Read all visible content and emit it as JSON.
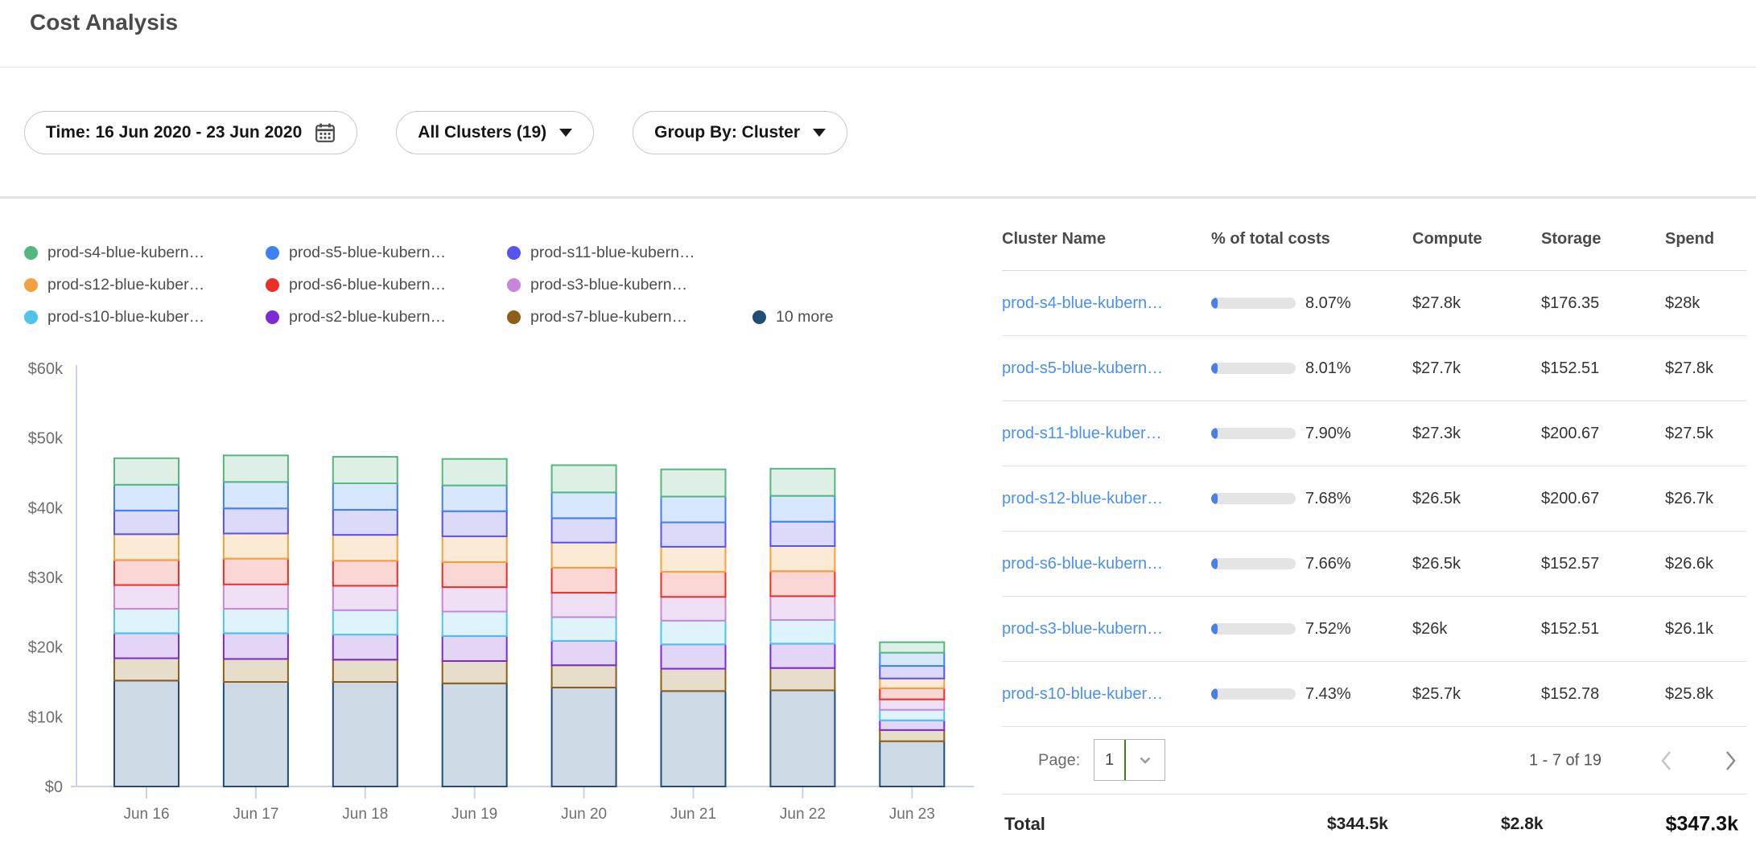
{
  "page": {
    "title": "Cost Analysis"
  },
  "filters": {
    "time_label": "Time: 16 Jun 2020 - 23 Jun 2020",
    "clusters_label": "All Clusters (19)",
    "group_by_label": "Group By: Cluster"
  },
  "chart_data": {
    "type": "bar",
    "stacked": true,
    "title": "",
    "xlabel": "",
    "ylabel": "",
    "units": "USD thousands per day",
    "ylim": [
      0,
      60000
    ],
    "grid": false,
    "legend_position": "top-left",
    "y_ticks": [
      "$0",
      "$10k",
      "$20k",
      "$30k",
      "$40k",
      "$50k",
      "$60k"
    ],
    "categories": [
      "Jun 16",
      "Jun 17",
      "Jun 18",
      "Jun 19",
      "Jun 20",
      "Jun 21",
      "Jun 22",
      "Jun 23"
    ],
    "series": [
      {
        "name": "prod-s4-blue-kubern…",
        "color": "#53b87e",
        "fill": "#def0e6",
        "values": [
          3.8,
          3.8,
          3.8,
          3.8,
          3.9,
          3.9,
          3.9,
          1.5
        ]
      },
      {
        "name": "prod-s5-blue-kubern…",
        "color": "#3d82f4",
        "fill": "#d9e7fc",
        "values": [
          3.7,
          3.8,
          3.8,
          3.7,
          3.7,
          3.7,
          3.7,
          1.9
        ]
      },
      {
        "name": "prod-s11-blue-kubern…",
        "color": "#5852f2",
        "fill": "#dcdaf9",
        "values": [
          3.4,
          3.6,
          3.6,
          3.6,
          3.5,
          3.5,
          3.5,
          1.8
        ]
      },
      {
        "name": "prod-s12-blue-kuber…",
        "color": "#f2a13d",
        "fill": "#fbead6",
        "values": [
          3.7,
          3.6,
          3.7,
          3.7,
          3.6,
          3.6,
          3.6,
          1.4
        ]
      },
      {
        "name": "prod-s6-blue-kubern…",
        "color": "#ea2f27",
        "fill": "#fad7d4",
        "values": [
          3.6,
          3.7,
          3.6,
          3.6,
          3.6,
          3.6,
          3.6,
          1.6
        ]
      },
      {
        "name": "prod-s3-blue-kubern…",
        "color": "#c886da",
        "fill": "#f0e0f6",
        "values": [
          3.4,
          3.5,
          3.5,
          3.5,
          3.5,
          3.4,
          3.4,
          1.5
        ]
      },
      {
        "name": "prod-s10-blue-kuber…",
        "color": "#4fc3ec",
        "fill": "#def3fb",
        "values": [
          3.5,
          3.5,
          3.5,
          3.5,
          3.4,
          3.4,
          3.4,
          1.5
        ]
      },
      {
        "name": "prod-s2-blue-kubern…",
        "color": "#7a2bd3",
        "fill": "#e2d5f6",
        "values": [
          3.6,
          3.7,
          3.6,
          3.6,
          3.5,
          3.5,
          3.5,
          1.4
        ]
      },
      {
        "name": "prod-s7-blue-kubern…",
        "color": "#8f5f1a",
        "fill": "#e6ddca",
        "values": [
          3.2,
          3.3,
          3.2,
          3.2,
          3.2,
          3.2,
          3.2,
          1.6
        ]
      },
      {
        "name": "10 more",
        "color": "#1f4e79",
        "fill": "#cdd9e5",
        "values": [
          15.2,
          15.0,
          15.0,
          14.8,
          14.2,
          13.7,
          13.8,
          6.5
        ]
      }
    ]
  },
  "table": {
    "columns": [
      "Cluster Name",
      "% of total costs",
      "Compute",
      "Storage",
      "Spend"
    ],
    "rows": [
      {
        "name": "prod-s4-blue-kubern…",
        "pct": "8.07%",
        "compute": "$27.8k",
        "storage": "$176.35",
        "spend": "$28k"
      },
      {
        "name": "prod-s5-blue-kubern…",
        "pct": "8.01%",
        "compute": "$27.7k",
        "storage": "$152.51",
        "spend": "$27.8k"
      },
      {
        "name": "prod-s11-blue-kuber…",
        "pct": "7.90%",
        "compute": "$27.3k",
        "storage": "$200.67",
        "spend": "$27.5k"
      },
      {
        "name": "prod-s12-blue-kuber…",
        "pct": "7.68%",
        "compute": "$26.5k",
        "storage": "$200.67",
        "spend": "$26.7k"
      },
      {
        "name": "prod-s6-blue-kubern…",
        "pct": "7.66%",
        "compute": "$26.5k",
        "storage": "$152.57",
        "spend": "$26.6k"
      },
      {
        "name": "prod-s3-blue-kubern…",
        "pct": "7.52%",
        "compute": "$26k",
        "storage": "$152.51",
        "spend": "$26.1k"
      },
      {
        "name": "prod-s10-blue-kuber…",
        "pct": "7.43%",
        "compute": "$25.7k",
        "storage": "$152.78",
        "spend": "$25.8k"
      }
    ],
    "pagination": {
      "label": "Page:",
      "value": "1",
      "range": "1 - 7 of 19"
    },
    "total": {
      "label": "Total",
      "compute": "$344.5k",
      "storage": "$2.8k",
      "spend": "$347.3k"
    }
  },
  "colors": {
    "link": "#4a90f2",
    "progress_track": "#e4e4e4",
    "progress_fill": "#4a7fe8",
    "axis": "#c9d3e8",
    "axis_text": "#6f6f6f",
    "select_divider_green": "#3e7d1b"
  }
}
